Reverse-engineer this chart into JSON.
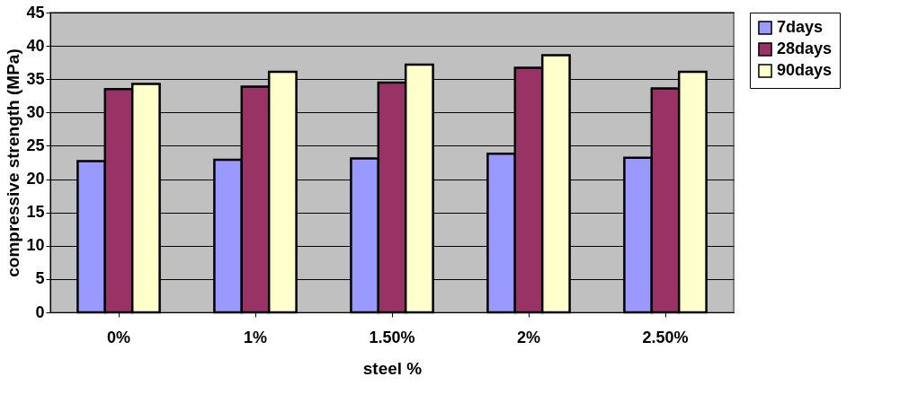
{
  "chart_data": {
    "type": "bar",
    "xlabel": "steel %",
    "ylabel": "compressive strength (MPa)",
    "categories": [
      "0%",
      "1%",
      "1.50%",
      "2%",
      "2.50%"
    ],
    "series": [
      {
        "name": "7days",
        "color": "#9999ff",
        "values": [
          22.7,
          22.9,
          23.1,
          23.8,
          23.2
        ]
      },
      {
        "name": "28days",
        "color": "#993366",
        "values": [
          33.5,
          33.9,
          34.5,
          36.7,
          33.6
        ]
      },
      {
        "name": "90days",
        "color": "#ffffcc",
        "values": [
          34.3,
          36.1,
          37.2,
          38.6,
          36.1
        ]
      }
    ],
    "ylim": [
      0,
      45
    ],
    "yticks": [
      0,
      5,
      10,
      15,
      20,
      25,
      30,
      35,
      40,
      45
    ],
    "grid": "y",
    "legend": "right"
  }
}
